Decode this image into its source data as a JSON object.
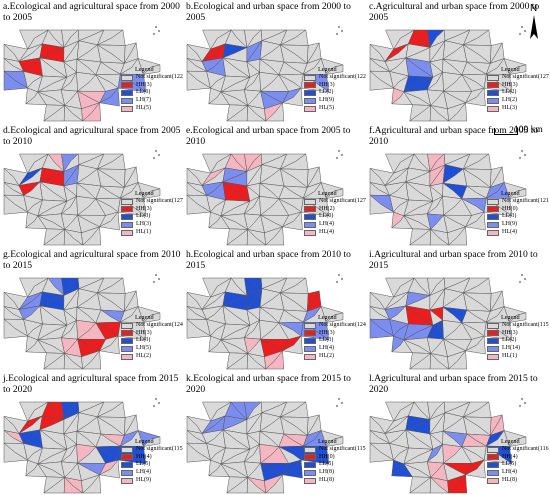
{
  "colors": {
    "not_significant": "#d9d9d9",
    "HH": "#ee1c1c",
    "LL": "#1f4fd6",
    "LH": "#7b8ef0",
    "HL": "#f4b6c0",
    "boundary": "#555555"
  },
  "legend_title": "Legend",
  "scale_label": "100 km",
  "north_label": "N",
  "panels": [
    {
      "title": "a.Ecological and agricultural space from 2000 to 2005",
      "legend": [
        "Not significant(122)",
        "HH(3)",
        "LL(0)",
        "LH(7)",
        "HL(5)"
      ],
      "hl": {
        "HH": [
          10,
          17
        ],
        "LH": [
          24,
          30,
          31,
          37
        ],
        "HL": [
          36,
          44,
          38
        ]
      }
    },
    {
      "title": "b.Ecological and urban space from 2000 to 2005",
      "legend": [
        "Not significant(122)",
        "HH(3)",
        "LL(2)",
        "LH(9)",
        "HL(5)"
      ],
      "hl": {
        "HH": [
          9
        ],
        "LL": [
          10,
          45
        ],
        "LH": [
          17,
          11,
          36,
          37,
          30
        ],
        "HL": [
          38,
          44
        ]
      }
    },
    {
      "title": "c.Agricultural and urban space from 2000 to 2005",
      "legend": [
        "Not significant(127)",
        "HH(3)",
        "LL(2)",
        "LH(2)",
        "HL(3)"
      ],
      "hl": {
        "HH": [
          2,
          9
        ],
        "LL": [
          3,
          26
        ],
        "LH": [
          18
        ],
        "HL": [
          33,
          40
        ]
      }
    },
    {
      "title": "d.Ecological and agricultural space from 2005 to 2010",
      "legend": [
        "Not significant(127)",
        "HH(3)",
        "LL(3)",
        "LH(3)",
        "HL(1)"
      ],
      "hl": {
        "HH": [
          10,
          17
        ],
        "LL": [
          9
        ],
        "LH": [
          3,
          11
        ],
        "HL": [
          2
        ]
      }
    },
    {
      "title": "e.Ecological and urban space from 2005 to 2010",
      "legend": [
        "Not significant(127)",
        "HH(2)",
        "LL(0)",
        "LH(4)",
        "HL(4)"
      ],
      "hl": {
        "HH": [
          18
        ],
        "LH": [
          10,
          17
        ],
        "HL": [
          2,
          3,
          9
        ]
      }
    },
    {
      "title": "f.Agricultural and urban space from 2005 to 2010",
      "legend": [
        "Not significant(121)",
        "HH(0)",
        "LL(3)",
        "LH(9)",
        "HL(4)"
      ],
      "hl": {
        "LL": [
          12,
          20
        ],
        "LH": [
          15,
          22,
          29,
          35,
          24
        ],
        "HL": [
          3,
          11,
          33,
          40
        ]
      }
    },
    {
      "title": "g.Ecological and agricultural space from 2010 to 2015",
      "legend": [
        "Not significant(124)",
        "HH(3)",
        "LL(3)",
        "LH(5)",
        "HL(2)"
      ],
      "hl": {
        "HH": [
          29,
          36
        ],
        "LL": [
          3,
          10
        ],
        "LH": [
          2,
          9,
          17,
          21
        ],
        "HL": [
          28,
          35
        ]
      }
    },
    {
      "title": "h.Ecological and urban space from 2010 to 2015",
      "legend": [
        "Not significant(124)",
        "HH(3)",
        "LL(3)",
        "LH(4)",
        "HL(2)"
      ],
      "hl": {
        "HH": [
          14,
          36,
          37
        ],
        "LL": [
          3,
          10,
          11
        ],
        "LH": [
          22,
          29,
          30
        ],
        "HL": [
          35,
          44
        ]
      }
    },
    {
      "title": "i.Agricultural and urban space from 2010 to 2015",
      "legend": [
        "Not significant(115)",
        "HH(3)",
        "LL(2)",
        "LH(14)",
        "HL(1)"
      ],
      "hl": {
        "HH": [
          18,
          19
        ],
        "LL": [
          20,
          27
        ],
        "LH": [
          10,
          17,
          24,
          25,
          26,
          31,
          33,
          39
        ],
        "HL": [
          32
        ]
      }
    },
    {
      "title": "j.Ecological and agricultural space from 2015 to 2020",
      "legend": [
        "Not significant(115)",
        "HH(4)",
        "LL(5)",
        "LH(4)",
        "HL(9)"
      ],
      "hl": {
        "HH": [
          2,
          9,
          10
        ],
        "LL": [
          3,
          17,
          29,
          30
        ],
        "LH": [
          23,
          22,
          36
        ],
        "HL": [
          15,
          16,
          21,
          28,
          37,
          43
        ]
      }
    },
    {
      "title": "k.Ecological and urban space from 2015 to 2020",
      "legend": [
        "Not significant(115)",
        "HH(0)",
        "LL(5)",
        "LH(8)",
        "HL(8)"
      ],
      "hl": {
        "LL": [
          29,
          30,
          36,
          37
        ],
        "LH": [
          2,
          3,
          9,
          10,
          22
        ],
        "HL": [
          15,
          21,
          28,
          43,
          44
        ]
      }
    },
    {
      "title": "l.Agricultural and urban space from 2015 to 2020",
      "legend": [
        "Not significant(116)",
        "HH(4)",
        "LL(5)",
        "LH(4)",
        "HL(8)"
      ],
      "hl": {
        "HH": [
          36,
          44,
          37
        ],
        "LL": [
          10,
          15,
          22,
          30,
          33
        ],
        "LH": [
          20,
          27
        ],
        "HL": [
          14,
          21,
          28,
          35,
          43
        ]
      }
    }
  ]
}
